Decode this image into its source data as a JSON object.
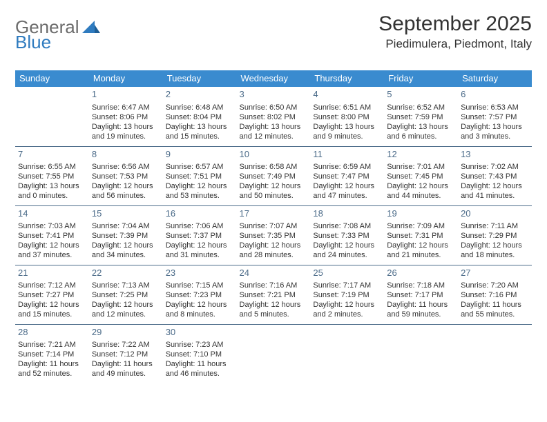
{
  "logo": {
    "general": "General",
    "blue": "Blue"
  },
  "title": "September 2025",
  "location": "Piedimulera, Piedmont, Italy",
  "colors": {
    "header_bg": "#3a8bcf",
    "header_text": "#ffffff",
    "daynum": "#4a6a88",
    "border": "#4a6a88",
    "body_text": "#333333",
    "logo_gray": "#6b6b6b",
    "logo_blue": "#2f7bbf"
  },
  "weekdays": [
    "Sunday",
    "Monday",
    "Tuesday",
    "Wednesday",
    "Thursday",
    "Friday",
    "Saturday"
  ],
  "weeks": [
    [
      {
        "n": "",
        "sunrise": "",
        "sunset": "",
        "daylight": ""
      },
      {
        "n": "1",
        "sunrise": "Sunrise: 6:47 AM",
        "sunset": "Sunset: 8:06 PM",
        "daylight": "Daylight: 13 hours and 19 minutes."
      },
      {
        "n": "2",
        "sunrise": "Sunrise: 6:48 AM",
        "sunset": "Sunset: 8:04 PM",
        "daylight": "Daylight: 13 hours and 15 minutes."
      },
      {
        "n": "3",
        "sunrise": "Sunrise: 6:50 AM",
        "sunset": "Sunset: 8:02 PM",
        "daylight": "Daylight: 13 hours and 12 minutes."
      },
      {
        "n": "4",
        "sunrise": "Sunrise: 6:51 AM",
        "sunset": "Sunset: 8:00 PM",
        "daylight": "Daylight: 13 hours and 9 minutes."
      },
      {
        "n": "5",
        "sunrise": "Sunrise: 6:52 AM",
        "sunset": "Sunset: 7:59 PM",
        "daylight": "Daylight: 13 hours and 6 minutes."
      },
      {
        "n": "6",
        "sunrise": "Sunrise: 6:53 AM",
        "sunset": "Sunset: 7:57 PM",
        "daylight": "Daylight: 13 hours and 3 minutes."
      }
    ],
    [
      {
        "n": "7",
        "sunrise": "Sunrise: 6:55 AM",
        "sunset": "Sunset: 7:55 PM",
        "daylight": "Daylight: 13 hours and 0 minutes."
      },
      {
        "n": "8",
        "sunrise": "Sunrise: 6:56 AM",
        "sunset": "Sunset: 7:53 PM",
        "daylight": "Daylight: 12 hours and 56 minutes."
      },
      {
        "n": "9",
        "sunrise": "Sunrise: 6:57 AM",
        "sunset": "Sunset: 7:51 PM",
        "daylight": "Daylight: 12 hours and 53 minutes."
      },
      {
        "n": "10",
        "sunrise": "Sunrise: 6:58 AM",
        "sunset": "Sunset: 7:49 PM",
        "daylight": "Daylight: 12 hours and 50 minutes."
      },
      {
        "n": "11",
        "sunrise": "Sunrise: 6:59 AM",
        "sunset": "Sunset: 7:47 PM",
        "daylight": "Daylight: 12 hours and 47 minutes."
      },
      {
        "n": "12",
        "sunrise": "Sunrise: 7:01 AM",
        "sunset": "Sunset: 7:45 PM",
        "daylight": "Daylight: 12 hours and 44 minutes."
      },
      {
        "n": "13",
        "sunrise": "Sunrise: 7:02 AM",
        "sunset": "Sunset: 7:43 PM",
        "daylight": "Daylight: 12 hours and 41 minutes."
      }
    ],
    [
      {
        "n": "14",
        "sunrise": "Sunrise: 7:03 AM",
        "sunset": "Sunset: 7:41 PM",
        "daylight": "Daylight: 12 hours and 37 minutes."
      },
      {
        "n": "15",
        "sunrise": "Sunrise: 7:04 AM",
        "sunset": "Sunset: 7:39 PM",
        "daylight": "Daylight: 12 hours and 34 minutes."
      },
      {
        "n": "16",
        "sunrise": "Sunrise: 7:06 AM",
        "sunset": "Sunset: 7:37 PM",
        "daylight": "Daylight: 12 hours and 31 minutes."
      },
      {
        "n": "17",
        "sunrise": "Sunrise: 7:07 AM",
        "sunset": "Sunset: 7:35 PM",
        "daylight": "Daylight: 12 hours and 28 minutes."
      },
      {
        "n": "18",
        "sunrise": "Sunrise: 7:08 AM",
        "sunset": "Sunset: 7:33 PM",
        "daylight": "Daylight: 12 hours and 24 minutes."
      },
      {
        "n": "19",
        "sunrise": "Sunrise: 7:09 AM",
        "sunset": "Sunset: 7:31 PM",
        "daylight": "Daylight: 12 hours and 21 minutes."
      },
      {
        "n": "20",
        "sunrise": "Sunrise: 7:11 AM",
        "sunset": "Sunset: 7:29 PM",
        "daylight": "Daylight: 12 hours and 18 minutes."
      }
    ],
    [
      {
        "n": "21",
        "sunrise": "Sunrise: 7:12 AM",
        "sunset": "Sunset: 7:27 PM",
        "daylight": "Daylight: 12 hours and 15 minutes."
      },
      {
        "n": "22",
        "sunrise": "Sunrise: 7:13 AM",
        "sunset": "Sunset: 7:25 PM",
        "daylight": "Daylight: 12 hours and 12 minutes."
      },
      {
        "n": "23",
        "sunrise": "Sunrise: 7:15 AM",
        "sunset": "Sunset: 7:23 PM",
        "daylight": "Daylight: 12 hours and 8 minutes."
      },
      {
        "n": "24",
        "sunrise": "Sunrise: 7:16 AM",
        "sunset": "Sunset: 7:21 PM",
        "daylight": "Daylight: 12 hours and 5 minutes."
      },
      {
        "n": "25",
        "sunrise": "Sunrise: 7:17 AM",
        "sunset": "Sunset: 7:19 PM",
        "daylight": "Daylight: 12 hours and 2 minutes."
      },
      {
        "n": "26",
        "sunrise": "Sunrise: 7:18 AM",
        "sunset": "Sunset: 7:17 PM",
        "daylight": "Daylight: 11 hours and 59 minutes."
      },
      {
        "n": "27",
        "sunrise": "Sunrise: 7:20 AM",
        "sunset": "Sunset: 7:16 PM",
        "daylight": "Daylight: 11 hours and 55 minutes."
      }
    ],
    [
      {
        "n": "28",
        "sunrise": "Sunrise: 7:21 AM",
        "sunset": "Sunset: 7:14 PM",
        "daylight": "Daylight: 11 hours and 52 minutes."
      },
      {
        "n": "29",
        "sunrise": "Sunrise: 7:22 AM",
        "sunset": "Sunset: 7:12 PM",
        "daylight": "Daylight: 11 hours and 49 minutes."
      },
      {
        "n": "30",
        "sunrise": "Sunrise: 7:23 AM",
        "sunset": "Sunset: 7:10 PM",
        "daylight": "Daylight: 11 hours and 46 minutes."
      },
      {
        "n": "",
        "sunrise": "",
        "sunset": "",
        "daylight": ""
      },
      {
        "n": "",
        "sunrise": "",
        "sunset": "",
        "daylight": ""
      },
      {
        "n": "",
        "sunrise": "",
        "sunset": "",
        "daylight": ""
      },
      {
        "n": "",
        "sunrise": "",
        "sunset": "",
        "daylight": ""
      }
    ]
  ]
}
